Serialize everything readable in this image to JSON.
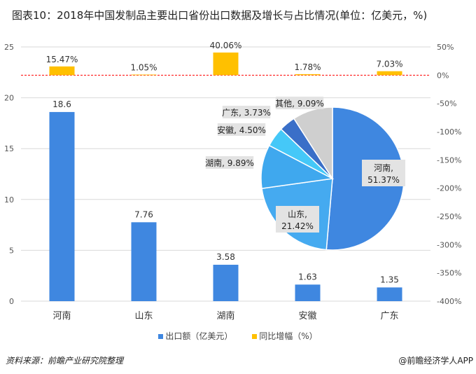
{
  "title": "图表10：2018年中国发制品主要出口省份出口数据及增长与占比情况(单位：亿美元，%)",
  "colors": {
    "bar": "#3f87e0",
    "growth": "#ffc000",
    "zero_line": "#ff0000"
  },
  "chart_data": [
    {
      "type": "bar",
      "categories": [
        "河南",
        "山东",
        "湖南",
        "安徽",
        "广东"
      ],
      "series": [
        {
          "name": "出口额（亿美元）",
          "axis": "left",
          "values": [
            18.6,
            7.76,
            3.58,
            1.63,
            1.35
          ],
          "labels": [
            "18.6",
            "7.76",
            "3.58",
            "1.63",
            "1.35"
          ]
        },
        {
          "name": "同比增幅（%）",
          "axis": "right",
          "values": [
            15.47,
            1.05,
            40.06,
            1.78,
            7.03
          ],
          "labels": [
            "15.47%",
            "1.05%",
            "40.06%",
            "1.78%",
            "7.03%"
          ]
        }
      ],
      "left_axis": {
        "ylim": [
          0,
          25
        ],
        "ticks": [
          "0",
          "5",
          "10",
          "15",
          "20",
          "25"
        ]
      },
      "right_axis": {
        "ylim": [
          -400,
          50
        ],
        "ticks": [
          "50%",
          "0%",
          "-50%",
          "-100%",
          "-150%",
          "-200%",
          "-250%",
          "-300%",
          "-350%",
          "-400%"
        ]
      },
      "grid": true,
      "legend_placement": "bottom"
    },
    {
      "type": "pie",
      "slices": [
        {
          "label": "河南",
          "value": 51.37,
          "text": "51.37%",
          "color": "#3f87e0"
        },
        {
          "label": "山东",
          "value": 21.42,
          "text": "21.42%",
          "color": "#45aaf0"
        },
        {
          "label": "湖南",
          "value": 9.89,
          "text": "9.89%",
          "color": "#3fa8ee"
        },
        {
          "label": "安徽",
          "value": 4.5,
          "text": "4.50%",
          "color": "#45c8f8"
        },
        {
          "label": "广东",
          "value": 3.73,
          "text": "3.73%",
          "color": "#3a6fc8"
        },
        {
          "label": "其他",
          "value": 9.09,
          "text": "9.09%",
          "color": "#cfcfcf"
        }
      ]
    }
  ],
  "source": "资料来源：前瞻产业研究院整理",
  "credit": "@前瞻经济学人APP"
}
